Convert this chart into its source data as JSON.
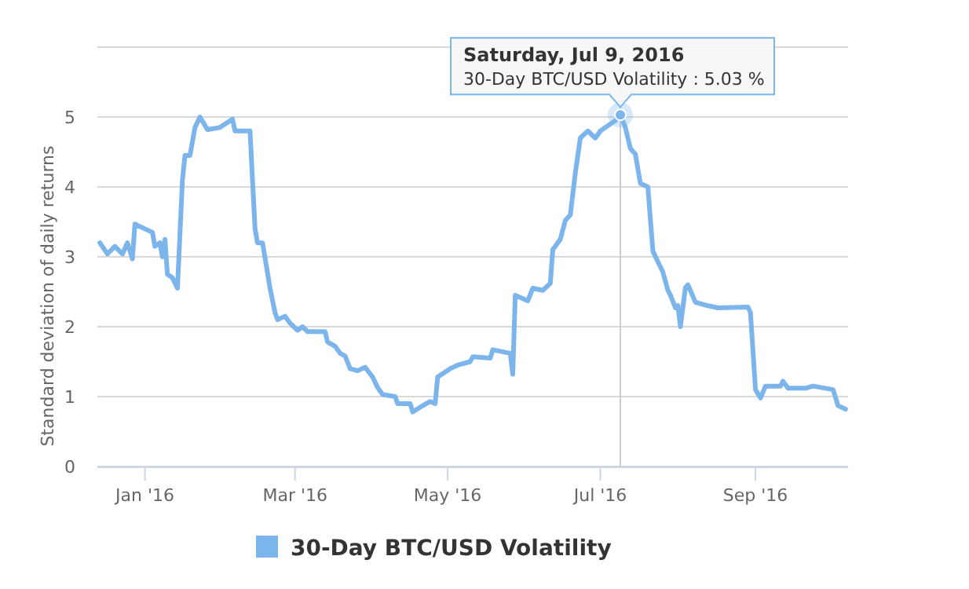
{
  "chart_data": {
    "type": "line",
    "ylabel": "Standard deviation of daily returns",
    "x": [
      "2015-12-14",
      "2015-12-17",
      "2015-12-20",
      "2015-12-23",
      "2015-12-25",
      "2015-12-27",
      "2015-12-28",
      "2015-12-29",
      "2016-01-01",
      "2016-01-04",
      "2016-01-05",
      "2016-01-07",
      "2016-01-08",
      "2016-01-09",
      "2016-01-10",
      "2016-01-12",
      "2016-01-14",
      "2016-01-16",
      "2016-01-17",
      "2016-01-19",
      "2016-01-21",
      "2016-01-23",
      "2016-01-26",
      "2016-01-31",
      "2016-02-05",
      "2016-02-06",
      "2016-02-12",
      "2016-02-14",
      "2016-02-15",
      "2016-02-17",
      "2016-02-20",
      "2016-02-22",
      "2016-02-23",
      "2016-02-26",
      "2016-02-28",
      "2016-03-02",
      "2016-03-04",
      "2016-03-06",
      "2016-03-13",
      "2016-03-14",
      "2016-03-17",
      "2016-03-19",
      "2016-03-21",
      "2016-03-23",
      "2016-03-26",
      "2016-03-29",
      "2016-04-01",
      "2016-04-03",
      "2016-04-05",
      "2016-04-10",
      "2016-04-11",
      "2016-04-16",
      "2016-04-17",
      "2016-04-21",
      "2016-04-24",
      "2016-04-26",
      "2016-04-27",
      "2016-05-02",
      "2016-05-05",
      "2016-05-10",
      "2016-05-11",
      "2016-05-18",
      "2016-05-19",
      "2016-05-26",
      "2016-05-27",
      "2016-05-28",
      "2016-06-02",
      "2016-06-04",
      "2016-06-08",
      "2016-06-11",
      "2016-06-12",
      "2016-06-15",
      "2016-06-17",
      "2016-06-19",
      "2016-06-21",
      "2016-06-23",
      "2016-06-26",
      "2016-06-29",
      "2016-07-01",
      "2016-07-05",
      "2016-07-07",
      "2016-07-09",
      "2016-07-11",
      "2016-07-13",
      "2016-07-15",
      "2016-07-17",
      "2016-07-20",
      "2016-07-22",
      "2016-07-24",
      "2016-07-26",
      "2016-07-28",
      "2016-07-29",
      "2016-07-31",
      "2016-08-01",
      "2016-08-02",
      "2016-08-04",
      "2016-08-05",
      "2016-08-08",
      "2016-08-13",
      "2016-08-17",
      "2016-08-29",
      "2016-08-30",
      "2016-09-01",
      "2016-09-03",
      "2016-09-05",
      "2016-09-11",
      "2016-09-12",
      "2016-09-14",
      "2016-09-21",
      "2016-09-24",
      "2016-10-02",
      "2016-10-04",
      "2016-10-07"
    ],
    "series": [
      {
        "name": "30-Day BTC/USD Volatility",
        "color": "#7cb5ec",
        "values": [
          3.2,
          3.04,
          3.15,
          3.04,
          3.2,
          2.97,
          3.47,
          3.45,
          3.4,
          3.35,
          3.15,
          3.2,
          3.0,
          3.25,
          2.75,
          2.7,
          2.55,
          4.1,
          4.45,
          4.45,
          4.85,
          5.0,
          4.82,
          4.85,
          4.97,
          4.8,
          4.8,
          3.4,
          3.2,
          3.2,
          2.55,
          2.2,
          2.1,
          2.15,
          2.05,
          1.95,
          2.0,
          1.93,
          1.93,
          1.78,
          1.72,
          1.62,
          1.58,
          1.4,
          1.37,
          1.42,
          1.28,
          1.13,
          1.03,
          1.0,
          0.9,
          0.9,
          0.78,
          0.87,
          0.93,
          0.9,
          1.28,
          1.4,
          1.45,
          1.5,
          1.57,
          1.55,
          1.67,
          1.62,
          1.32,
          2.45,
          2.37,
          2.55,
          2.52,
          2.62,
          3.1,
          3.25,
          3.52,
          3.6,
          4.2,
          4.7,
          4.8,
          4.7,
          4.8,
          4.9,
          4.95,
          5.03,
          4.85,
          4.55,
          4.47,
          4.05,
          4.0,
          3.08,
          2.93,
          2.78,
          2.52,
          2.45,
          2.27,
          2.3,
          2.0,
          2.56,
          2.6,
          2.35,
          2.3,
          2.27,
          2.28,
          2.2,
          1.1,
          0.98,
          1.15,
          1.15,
          1.22,
          1.12,
          1.12,
          1.15,
          1.1,
          0.87,
          0.82
        ]
      }
    ],
    "xlim": [
      "2015-12-13",
      "2016-10-08"
    ],
    "xticks": [
      {
        "value": "2016-01-01",
        "label": "Jan '16"
      },
      {
        "value": "2016-03-01",
        "label": "Mar '16"
      },
      {
        "value": "2016-05-01",
        "label": "May '16"
      },
      {
        "value": "2016-07-01",
        "label": "Jul '16"
      },
      {
        "value": "2016-09-01",
        "label": "Sep '16"
      }
    ],
    "ylim": [
      0,
      6
    ],
    "yticks": [
      0,
      1,
      2,
      3,
      4,
      5,
      {
        "value": 6,
        "label": null
      }
    ],
    "grid": "y",
    "legend": "bottom",
    "marker": "none",
    "line_style": "solid",
    "ref_lines": [
      {
        "axis": "x",
        "value": "2016-07-09",
        "color": "#cccccc"
      }
    ],
    "annotations": [
      {
        "text": "Saturday, Jul 9, 2016\n30-Day BTC/USD Volatility : 5.03 %",
        "x": "2016-07-09",
        "y": 5.03
      }
    ]
  }
}
